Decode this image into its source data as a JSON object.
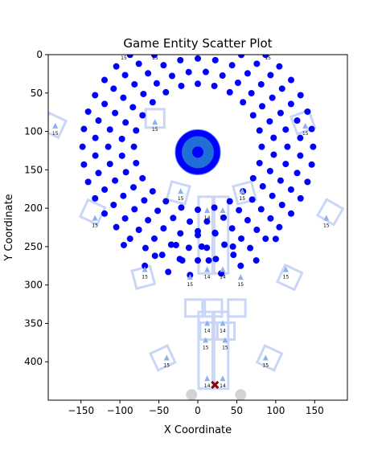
{
  "chart_data": {
    "type": "scatter",
    "title": "Game Entity Scatter Plot",
    "xlabel": "X Coordinate",
    "ylabel": "Y Coordinate",
    "xlim": [
      -192,
      192
    ],
    "ylim": [
      450,
      0
    ],
    "y_inverted": true,
    "grid": false,
    "xticks": [
      -150,
      -100,
      -50,
      0,
      50,
      100,
      150
    ],
    "yticks": [
      0,
      50,
      100,
      150,
      200,
      250,
      300,
      350,
      400
    ],
    "colors": {
      "dots": "#0000ff",
      "target_ring": "#1f6fd6",
      "buildings": "#c9d6f7",
      "units": "#8fb1e8",
      "marker": "#8b0000",
      "bottom_circles": "#d3d3d3"
    },
    "dot_rings": [
      {
        "radius": 82,
        "count": 24,
        "start_deg": 0
      },
      {
        "radius": 98,
        "count": 28,
        "start_deg": 6
      },
      {
        "radius": 115,
        "count": 32,
        "start_deg": 0
      },
      {
        "radius": 132,
        "count": 36,
        "start_deg": 5
      },
      {
        "radius": 148,
        "count": 40,
        "start_deg": 0
      }
    ],
    "ring_center": [
      0,
      120
    ],
    "extra_dots": [
      [
        -38,
        283
      ],
      [
        -10,
        287
      ],
      [
        14,
        268
      ],
      [
        30,
        285
      ],
      [
        -20,
        268
      ],
      [
        5,
        250
      ],
      [
        45,
        250
      ],
      [
        55,
        275
      ],
      [
        -55,
        262
      ],
      [
        -68,
        275
      ],
      [
        75,
        268
      ],
      [
        100,
        240
      ],
      [
        -95,
        248
      ],
      [
        0,
        230
      ],
      [
        22,
        232
      ],
      [
        -28,
        248
      ]
    ],
    "target": {
      "x": 0,
      "y": 127,
      "rings": [
        28,
        20,
        12,
        7
      ]
    },
    "buildings": [
      {
        "x": 10,
        "y": 235,
        "w": 18,
        "h": 100,
        "angle": 0
      },
      {
        "x": 30,
        "y": 235,
        "w": 18,
        "h": 100,
        "angle": 0
      },
      {
        "x": 10,
        "y": 385,
        "w": 18,
        "h": 100,
        "angle": 0
      },
      {
        "x": 30,
        "y": 385,
        "w": 18,
        "h": 100,
        "angle": 0
      },
      {
        "x": -5,
        "y": 330,
        "w": 22,
        "h": 22,
        "angle": 0
      },
      {
        "x": 20,
        "y": 330,
        "w": 22,
        "h": 22,
        "angle": 0
      },
      {
        "x": 50,
        "y": 330,
        "w": 22,
        "h": 22,
        "angle": 0
      },
      {
        "x": -185,
        "y": 92,
        "w": 24,
        "h": 24,
        "angle": 25
      },
      {
        "x": -55,
        "y": 83,
        "w": 24,
        "h": 24,
        "angle": 0
      },
      {
        "x": 135,
        "y": 88,
        "w": 24,
        "h": 24,
        "angle": -20
      },
      {
        "x": -25,
        "y": 180,
        "w": 24,
        "h": 24,
        "angle": 15
      },
      {
        "x": 60,
        "y": 180,
        "w": 24,
        "h": 24,
        "angle": -15
      },
      {
        "x": -135,
        "y": 205,
        "w": 24,
        "h": 24,
        "angle": 25
      },
      {
        "x": 170,
        "y": 205,
        "w": 24,
        "h": 24,
        "angle": 30
      },
      {
        "x": -70,
        "y": 290,
        "w": 24,
        "h": 24,
        "angle": -15
      },
      {
        "x": 118,
        "y": 290,
        "w": 24,
        "h": 24,
        "angle": 25
      },
      {
        "x": -45,
        "y": 395,
        "w": 24,
        "h": 24,
        "angle": -25
      },
      {
        "x": 92,
        "y": 395,
        "w": 24,
        "h": 24,
        "angle": 25
      },
      {
        "x": 14,
        "y": 360,
        "w": 22,
        "h": 22,
        "angle": 0
      },
      {
        "x": 36,
        "y": 360,
        "w": 22,
        "h": 22,
        "angle": 0
      }
    ],
    "units": [
      {
        "x": -183,
        "y": 93,
        "label": "15"
      },
      {
        "x": -95,
        "y": -5,
        "label": "15"
      },
      {
        "x": -55,
        "y": -5,
        "label": "15"
      },
      {
        "x": 90,
        "y": -5,
        "label": "15"
      },
      {
        "x": -55,
        "y": 88,
        "label": "15"
      },
      {
        "x": 138,
        "y": 93,
        "label": "15"
      },
      {
        "x": -22,
        "y": 178,
        "label": "15"
      },
      {
        "x": 57,
        "y": 178,
        "label": "15"
      },
      {
        "x": -132,
        "y": 213,
        "label": "15"
      },
      {
        "x": 165,
        "y": 213,
        "label": "15"
      },
      {
        "x": 12,
        "y": 203,
        "label": "14"
      },
      {
        "x": 32,
        "y": 203,
        "label": "14"
      },
      {
        "x": -68,
        "y": 280,
        "label": "15"
      },
      {
        "x": -10,
        "y": 290,
        "label": "15"
      },
      {
        "x": 12,
        "y": 280,
        "label": "14"
      },
      {
        "x": 32,
        "y": 280,
        "label": "14"
      },
      {
        "x": 55,
        "y": 290,
        "label": "15"
      },
      {
        "x": 113,
        "y": 280,
        "label": "15"
      },
      {
        "x": 12,
        "y": 350,
        "label": "14"
      },
      {
        "x": 32,
        "y": 350,
        "label": "14"
      },
      {
        "x": 10,
        "y": 372,
        "label": "15"
      },
      {
        "x": 35,
        "y": 372,
        "label": "15"
      },
      {
        "x": -40,
        "y": 395,
        "label": "15"
      },
      {
        "x": 87,
        "y": 395,
        "label": "15"
      },
      {
        "x": 12,
        "y": 422,
        "label": "14"
      },
      {
        "x": 32,
        "y": 422,
        "label": "14"
      }
    ],
    "marker": {
      "x": 22,
      "y": 430
    },
    "bottom_circles": [
      {
        "x": -8,
        "y": 443
      },
      {
        "x": 55,
        "y": 443
      }
    ]
  }
}
